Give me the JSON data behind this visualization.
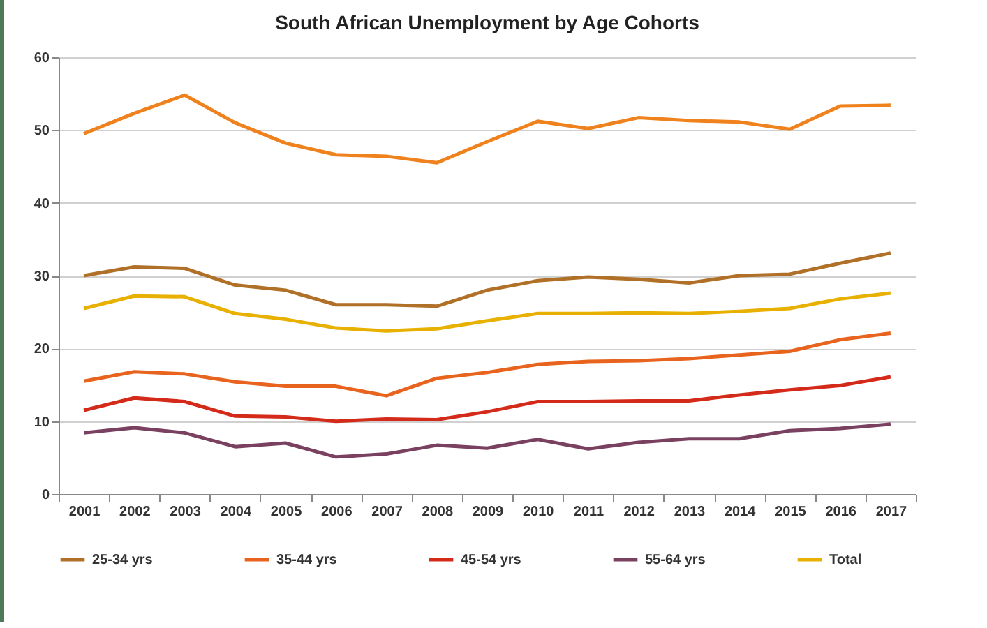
{
  "chart_data": {
    "type": "line",
    "title": "South African Unemployment by Age Cohorts",
    "categories": [
      "2001",
      "2002",
      "2003",
      "2004",
      "2005",
      "2006",
      "2007",
      "2008",
      "2009",
      "2010",
      "2011",
      "2012",
      "2013",
      "2014",
      "2015",
      "2016",
      "2017"
    ],
    "series": [
      {
        "color": "#f0821e",
        "values": [
          49.5,
          52.3,
          54.8,
          51,
          48.2,
          46.6,
          46.4,
          45.5,
          48.4,
          51.2,
          50.2,
          51.7,
          51.3,
          51.1,
          50.1,
          53.3,
          53.4
        ]
      },
      {
        "name": "25-34 yrs",
        "color": "#b07028",
        "values": [
          30,
          31.2,
          31,
          28.7,
          28,
          26,
          26,
          25.8,
          28,
          29.3,
          29.8,
          29.5,
          29,
          30,
          30.2,
          31.7,
          33.1
        ]
      },
      {
        "name": "35-44 yrs",
        "color": "#e8641e",
        "values": [
          15.5,
          16.8,
          16.5,
          15.4,
          14.8,
          14.8,
          13.5,
          15.9,
          16.7,
          17.8,
          18.2,
          18.3,
          18.6,
          19.1,
          19.6,
          21.2,
          22.1
        ]
      },
      {
        "name": "45-54 yrs",
        "color": "#d42a1a",
        "values": [
          11.5,
          13.2,
          12.7,
          10.7,
          10.6,
          10,
          10.3,
          10.2,
          11.3,
          12.7,
          12.7,
          12.8,
          12.8,
          13.6,
          14.3,
          14.9,
          16.1
        ]
      },
      {
        "name": "55-64 yrs",
        "color": "#7a4060",
        "values": [
          8.4,
          9.1,
          8.4,
          6.5,
          7,
          5.1,
          5.5,
          6.7,
          6.3,
          7.5,
          6.2,
          7.1,
          7.6,
          7.6,
          8.7,
          9,
          9.6
        ]
      },
      {
        "name": "Total",
        "color": "#e8b000",
        "values": [
          25.5,
          27.2,
          27.1,
          24.8,
          24,
          22.8,
          22.4,
          22.7,
          23.8,
          24.8,
          24.8,
          24.9,
          24.8,
          25.1,
          25.5,
          26.8,
          27.6
        ]
      }
    ],
    "ylim": [
      0,
      60
    ],
    "yticks": [
      0,
      10,
      20,
      30,
      40,
      50,
      60
    ],
    "grid": "y",
    "legend": "bottom",
    "marker": "none",
    "line_style": "solid"
  }
}
